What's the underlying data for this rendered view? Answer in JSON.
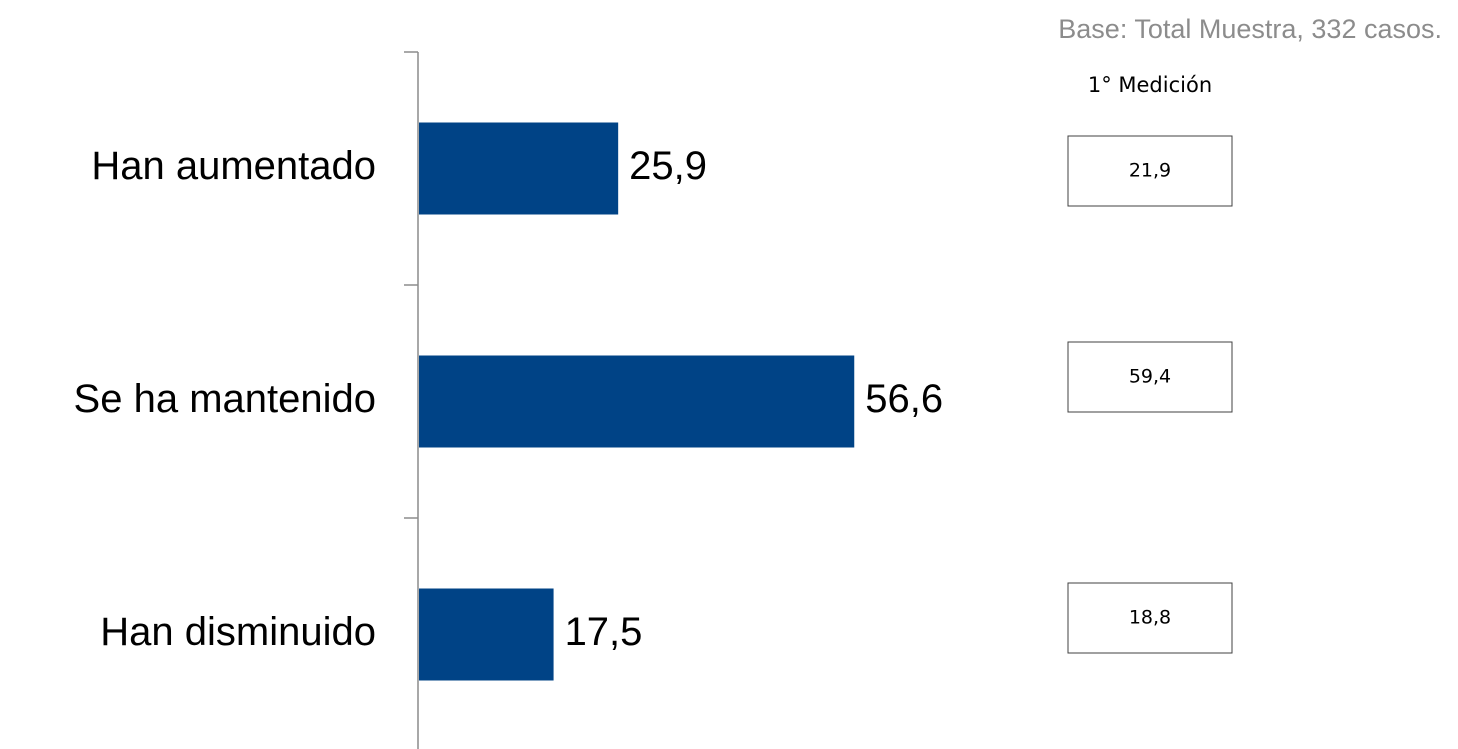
{
  "base_note": "Base: Total Muestra, 332 casos.",
  "chart_data": {
    "type": "bar",
    "orientation": "horizontal",
    "categories": [
      "Han aumentado",
      "Se ha mantenido",
      "Han disminuido"
    ],
    "values": [
      25.9,
      56.6,
      17.5
    ],
    "value_labels": [
      "25,9",
      "56,6",
      "17,5"
    ],
    "xlim": [
      0,
      100
    ],
    "grid": false,
    "legend": "none",
    "bar_color": "#004386",
    "comparison": {
      "title": "1° Medición",
      "values": [
        21.9,
        59.4,
        18.8
      ],
      "value_labels": [
        "21,9",
        "59,4",
        "18,8"
      ]
    }
  }
}
